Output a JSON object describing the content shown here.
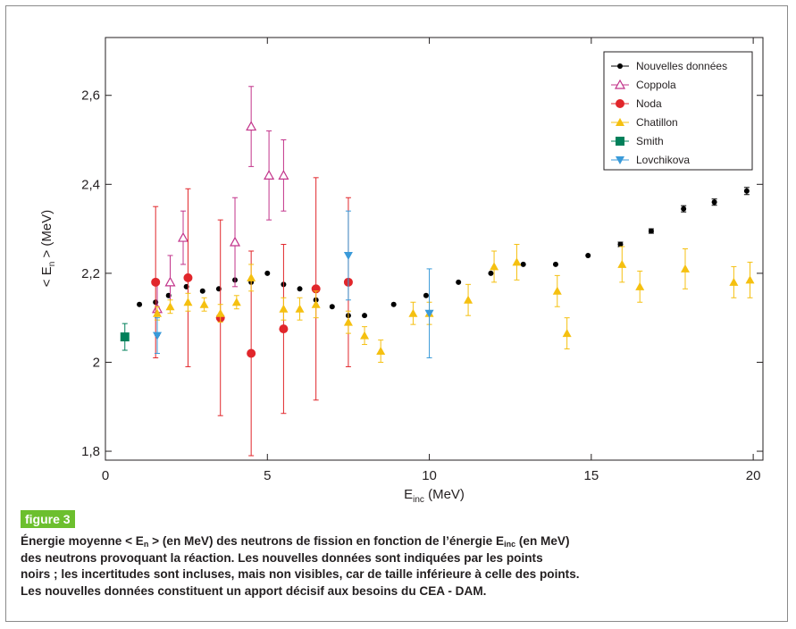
{
  "chart_data": {
    "type": "scatter",
    "xlabel": {
      "main": "E",
      "sub": "inc",
      "unit": " (MeV)"
    },
    "ylabel": {
      "pre": "< E",
      "sub": "n",
      "post": " > (MeV)"
    },
    "xlim": [
      0,
      20.3
    ],
    "ylim": [
      1.78,
      2.73
    ],
    "x_ticks": [
      {
        "v": 0,
        "label": "0"
      },
      {
        "v": 5,
        "label": "5"
      },
      {
        "v": 10,
        "label": "10"
      },
      {
        "v": 15,
        "label": "15"
      },
      {
        "v": 20,
        "label": "20"
      }
    ],
    "y_ticks": [
      {
        "v": 1.8,
        "label": "1,8"
      },
      {
        "v": 2.0,
        "label": "2"
      },
      {
        "v": 2.2,
        "label": "2,2"
      },
      {
        "v": 2.4,
        "label": "2,4"
      },
      {
        "v": 2.6,
        "label": "2,6"
      }
    ],
    "grid": false,
    "legend_position": "top-right",
    "series": [
      {
        "name": "Nouvelles données",
        "color": "#000000",
        "marker": "dot",
        "points": [
          [
            1.05,
            2.13,
            0
          ],
          [
            1.55,
            2.135,
            0
          ],
          [
            1.95,
            2.15,
            0
          ],
          [
            2.5,
            2.17,
            0
          ],
          [
            3.0,
            2.16,
            0
          ],
          [
            3.5,
            2.165,
            0
          ],
          [
            4.0,
            2.185,
            0
          ],
          [
            4.5,
            2.18,
            0
          ],
          [
            5.0,
            2.2,
            0
          ],
          [
            5.5,
            2.175,
            0
          ],
          [
            6.0,
            2.165,
            0
          ],
          [
            6.5,
            2.14,
            0
          ],
          [
            7.0,
            2.125,
            0
          ],
          [
            7.5,
            2.105,
            0
          ],
          [
            8.0,
            2.105,
            0
          ],
          [
            8.9,
            2.13,
            0
          ],
          [
            9.9,
            2.15,
            0
          ],
          [
            10.9,
            2.18,
            0
          ],
          [
            11.9,
            2.2,
            0
          ],
          [
            12.9,
            2.22,
            0
          ],
          [
            13.9,
            2.22,
            0
          ],
          [
            14.9,
            2.24,
            0
          ],
          [
            15.9,
            2.265,
            0.005
          ],
          [
            16.85,
            2.295,
            0.005
          ],
          [
            17.85,
            2.345,
            0.007
          ],
          [
            18.8,
            2.36,
            0.007
          ],
          [
            19.8,
            2.385,
            0.008
          ]
        ]
      },
      {
        "name": "Coppola",
        "color": "#c2338a",
        "marker": "triangle-open",
        "points": [
          [
            1.6,
            2.12,
            0.06
          ],
          [
            2.0,
            2.18,
            0.06
          ],
          [
            2.4,
            2.28,
            0.06
          ],
          [
            4.0,
            2.27,
            0.1
          ],
          [
            4.5,
            2.53,
            0.09
          ],
          [
            5.05,
            2.42,
            0.1
          ],
          [
            5.5,
            2.42,
            0.08
          ]
        ]
      },
      {
        "name": "Noda",
        "color": "#e1262b",
        "marker": "circle",
        "points": [
          [
            1.55,
            2.18,
            0.17
          ],
          [
            2.55,
            2.19,
            0.2
          ],
          [
            3.55,
            2.1,
            0.22
          ],
          [
            4.5,
            2.02,
            0.23
          ],
          [
            5.5,
            2.075,
            0.19
          ],
          [
            6.5,
            2.165,
            0.25
          ],
          [
            7.5,
            2.18,
            0.19
          ]
        ]
      },
      {
        "name": "Chatillon",
        "color": "#f5c010",
        "marker": "triangle-up",
        "points": [
          [
            1.6,
            2.11,
            0.015
          ],
          [
            2.0,
            2.125,
            0.015
          ],
          [
            2.55,
            2.135,
            0.02
          ],
          [
            3.05,
            2.13,
            0.015
          ],
          [
            3.55,
            2.11,
            0.02
          ],
          [
            4.05,
            2.135,
            0.015
          ],
          [
            4.5,
            2.19,
            0.03
          ],
          [
            5.5,
            2.12,
            0.025
          ],
          [
            6.0,
            2.12,
            0.025
          ],
          [
            6.5,
            2.13,
            0.03
          ],
          [
            7.5,
            2.09,
            0.025
          ],
          [
            8.0,
            2.06,
            0.02
          ],
          [
            8.5,
            2.025,
            0.025
          ],
          [
            9.5,
            2.11,
            0.025
          ],
          [
            10.0,
            2.11,
            0.025
          ],
          [
            11.2,
            2.14,
            0.035
          ],
          [
            12.0,
            2.215,
            0.035
          ],
          [
            12.7,
            2.225,
            0.04
          ],
          [
            13.95,
            2.16,
            0.035
          ],
          [
            14.25,
            2.065,
            0.035
          ],
          [
            15.95,
            2.22,
            0.04
          ],
          [
            16.5,
            2.17,
            0.035
          ],
          [
            17.9,
            2.21,
            0.045
          ],
          [
            19.4,
            2.18,
            0.035
          ],
          [
            19.9,
            2.185,
            0.04
          ]
        ]
      },
      {
        "name": "Smith",
        "color": "#00805a",
        "marker": "square",
        "points": [
          [
            0.6,
            2.057,
            0.03
          ]
        ]
      },
      {
        "name": "Lovchikova",
        "color": "#3a9ad9",
        "marker": "triangle-down",
        "points": [
          [
            1.6,
            2.06,
            0.04
          ],
          [
            7.5,
            2.24,
            0.1
          ],
          [
            10.0,
            2.11,
            0.1
          ]
        ]
      }
    ]
  },
  "figure_tag": "figure 3",
  "caption": {
    "l1a": "Énergie moyenne < E",
    "l1_sub1": "n",
    "l1b": " > (en MeV) des neutrons de fission en fonction de l’énergie E",
    "l1_sub2": "inc",
    "l1c": " (en MeV)",
    "l2": "des neutrons provoquant la réaction. Les nouvelles données sont indiquées par les points",
    "l3": "noirs ; les incertitudes sont incluses, mais non visibles, car de taille inférieure à celle des points.",
    "l4": "Les nouvelles données constituent un apport décisif aux besoins du CEA - DAM."
  }
}
